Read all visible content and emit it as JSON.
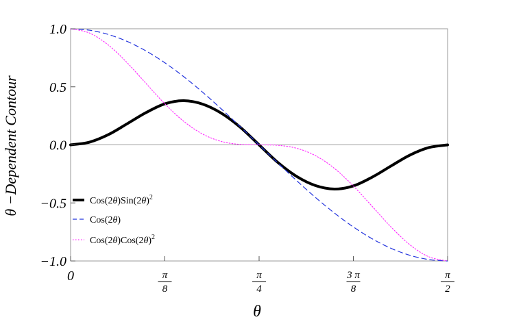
{
  "chart_data": {
    "type": "line",
    "xlabel": "θ",
    "ylabel": "θ −Dependent Contour",
    "xlim": [
      0,
      1.5708
    ],
    "ylim": [
      -1.0,
      1.0
    ],
    "x_ticks": [
      {
        "value": 0,
        "label": "0"
      },
      {
        "value": 0.3927,
        "num": "π",
        "den": "8"
      },
      {
        "value": 0.7854,
        "num": "π",
        "den": "4"
      },
      {
        "value": 1.1781,
        "num": "3 π",
        "den": "8"
      },
      {
        "value": 1.5708,
        "num": "π",
        "den": "2"
      }
    ],
    "y_ticks": [
      {
        "value": 1.0,
        "label": "1.0"
      },
      {
        "value": 0.5,
        "label": "0.5"
      },
      {
        "value": 0.0,
        "label": "0.0"
      },
      {
        "value": -0.5,
        "label": "−0.5"
      },
      {
        "value": -1.0,
        "label": "−1.0"
      }
    ],
    "zero_line": true,
    "legend_position": "left",
    "series": [
      {
        "name": "Cos(2θ)Sin(2θ)²",
        "color": "#000000",
        "style": "solid",
        "x": [
          0,
          0.0785,
          0.1571,
          0.2356,
          0.3142,
          0.3927,
          0.4712,
          0.5498,
          0.6283,
          0.7069,
          0.7854,
          0.8639,
          0.9425,
          1.021,
          1.0996,
          1.1781,
          1.2566,
          1.3352,
          1.4137,
          1.4923,
          1.5708
        ],
        "y": [
          0,
          0.0234,
          0.088,
          0.1817,
          0.2778,
          0.3536,
          0.3803,
          0.3511,
          0.2727,
          0.1521,
          0,
          -0.1521,
          -0.2727,
          -0.3511,
          -0.3803,
          -0.3536,
          -0.2778,
          -0.1817,
          -0.088,
          -0.0234,
          0
        ]
      },
      {
        "name": "Cos(2θ)",
        "color": "#2233dd",
        "style": "dashed",
        "x": [
          0,
          0.0785,
          0.1571,
          0.2356,
          0.3142,
          0.3927,
          0.4712,
          0.5498,
          0.6283,
          0.7069,
          0.7854,
          0.8639,
          0.9425,
          1.021,
          1.0996,
          1.1781,
          1.2566,
          1.3352,
          1.4137,
          1.4923,
          1.5708
        ],
        "y": [
          1,
          0.9877,
          0.9511,
          0.891,
          0.809,
          0.7071,
          0.5878,
          0.454,
          0.309,
          0.1564,
          0,
          -0.1564,
          -0.309,
          -0.454,
          -0.5878,
          -0.7071,
          -0.809,
          -0.891,
          -0.9511,
          -0.9877,
          -1
        ]
      },
      {
        "name": "Cos(2θ)Cos(2θ)²",
        "color": "#ff33ff",
        "style": "dotted",
        "x": [
          0,
          0.0785,
          0.1571,
          0.2356,
          0.3142,
          0.3927,
          0.4712,
          0.5498,
          0.6283,
          0.7069,
          0.7854,
          0.8639,
          0.9425,
          1.021,
          1.0996,
          1.1781,
          1.2566,
          1.3352,
          1.4137,
          1.4923,
          1.5708
        ],
        "y": [
          1,
          0.9635,
          0.8602,
          0.7074,
          0.5295,
          0.3536,
          0.2031,
          0.0936,
          0.0295,
          0.0038,
          0,
          -0.0038,
          -0.0295,
          -0.0936,
          -0.2031,
          -0.3536,
          -0.5295,
          -0.7074,
          -0.8602,
          -0.9635,
          -1
        ]
      }
    ]
  },
  "legend": {
    "items": [
      {
        "base": "Cos(2",
        "theta": "θ",
        "mid": ")Sin(2",
        "theta2": "θ",
        "end": ")",
        "sup": "2"
      },
      {
        "base": "Cos(2",
        "theta": "θ",
        "end": ")"
      },
      {
        "base": "Cos(2",
        "theta": "θ",
        "mid": ")Cos(2",
        "theta2": "θ",
        "end": ")",
        "sup": "2"
      }
    ]
  }
}
